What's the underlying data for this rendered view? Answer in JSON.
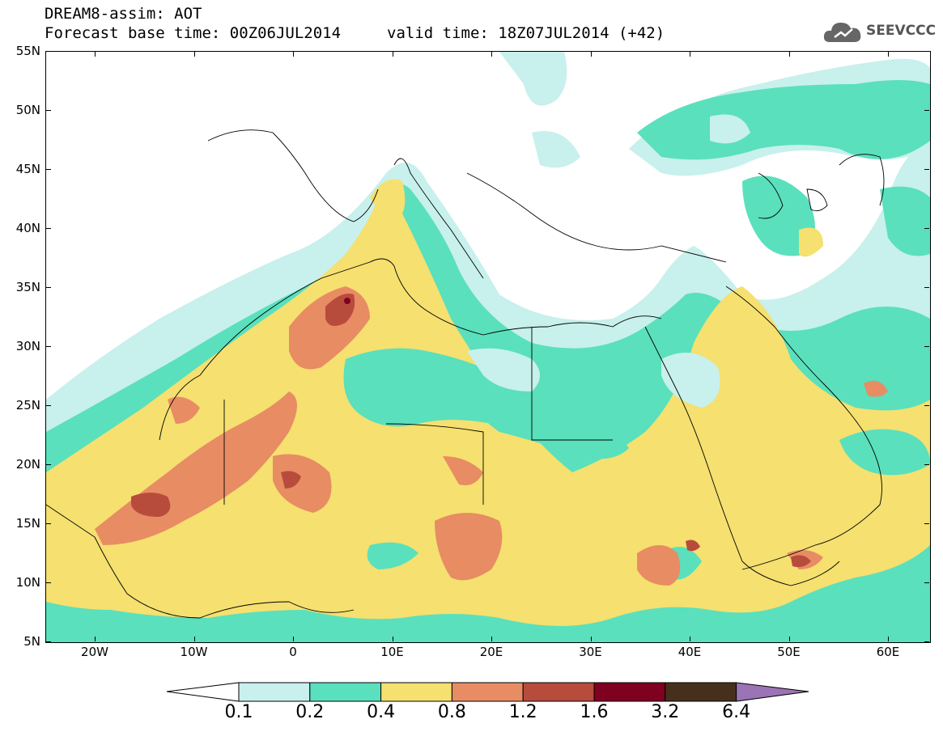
{
  "header": {
    "title": "DREAM8-assim: AOT",
    "base_time": "Forecast base time: 00Z06JUL2014",
    "valid_time": "valid time: 18Z07JUL2014 (+42)"
  },
  "logo": {
    "text": "SEEVCCC",
    "icon": "cloud-icon"
  },
  "map": {
    "lat_labels": [
      "55N",
      "50N",
      "45N",
      "40N",
      "35N",
      "30N",
      "25N",
      "20N",
      "15N",
      "10N",
      "5N"
    ],
    "lon_labels": [
      "20W",
      "10W",
      "0",
      "10E",
      "20E",
      "30E",
      "40E",
      "50E",
      "60E"
    ],
    "region": "North Africa, Mediterranean and Middle East"
  },
  "colorbar": {
    "levels": [
      "0.1",
      "0.2",
      "0.4",
      "0.8",
      "1.2",
      "1.6",
      "3.2",
      "6.4"
    ],
    "colors": {
      "below": "#ffffff",
      "c1": "#c8f0ec",
      "c2": "#5ae0bc",
      "c3": "#f5e070",
      "c4": "#e88c64",
      "c5": "#b84c3c",
      "c6": "#800020",
      "c7": "#46301c",
      "above": "#9a74b4"
    }
  }
}
